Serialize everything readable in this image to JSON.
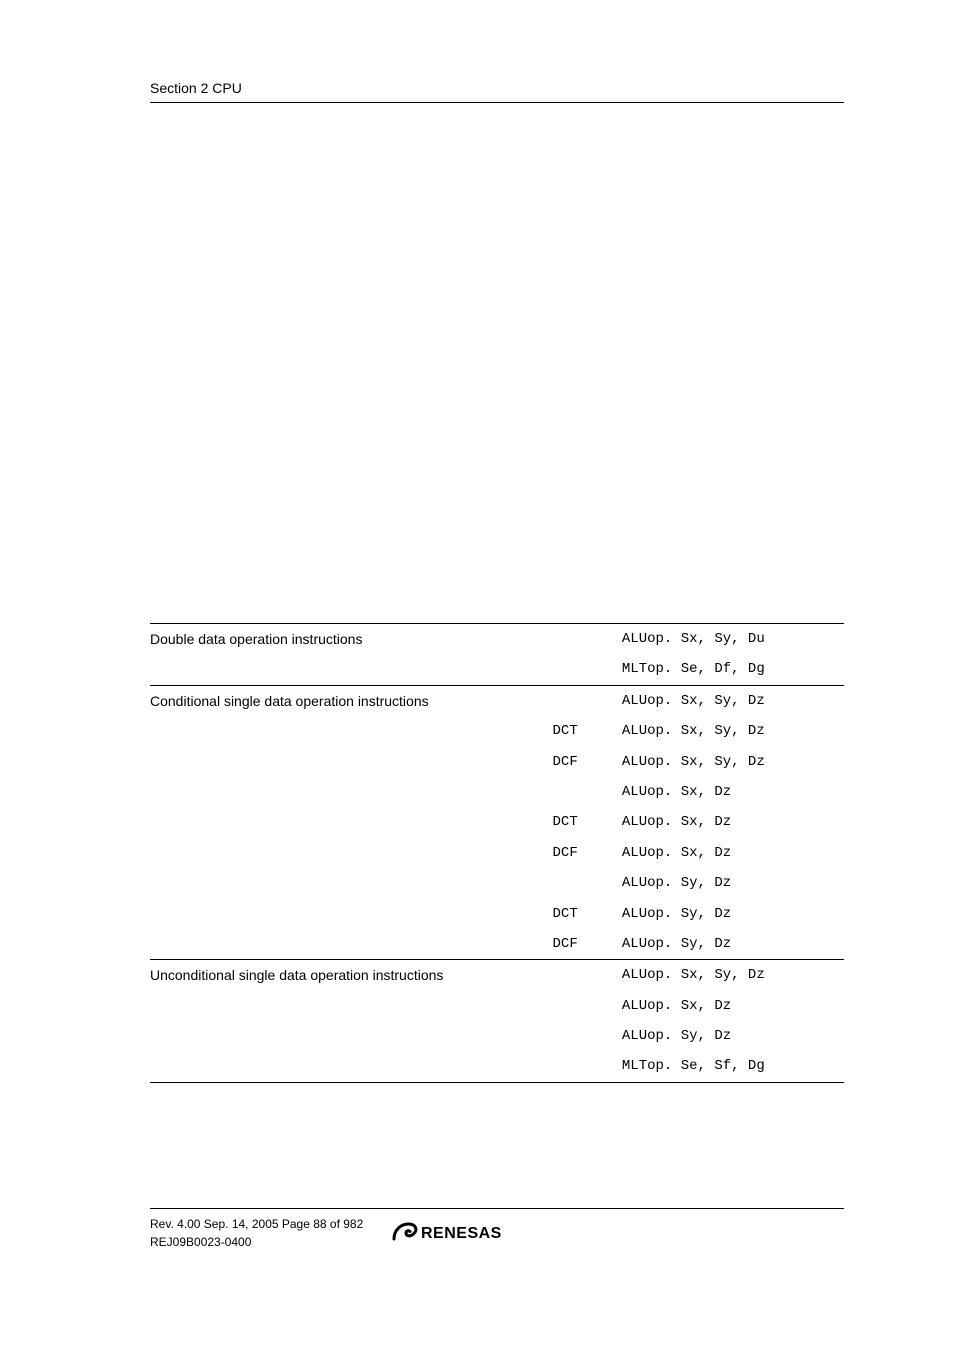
{
  "header": {
    "text": "Section 2   CPU"
  },
  "table": {
    "rows": [
      {
        "desc": "Double data operation instructions",
        "pref": "",
        "code": "ALUop. Sx, Sy, Du",
        "topline": true
      },
      {
        "desc": "",
        "pref": "",
        "code": "MLTop. Se, Df, Dg"
      },
      {
        "desc": "Conditional single data operation instructions",
        "pref": "",
        "code": "ALUop. Sx, Sy, Dz",
        "topline": true
      },
      {
        "desc": "",
        "pref": "DCT",
        "code": "ALUop. Sx, Sy, Dz"
      },
      {
        "desc": "",
        "pref": "DCF",
        "code": "ALUop. Sx, Sy, Dz"
      },
      {
        "desc": "",
        "pref": "",
        "code": "ALUop. Sx, Dz"
      },
      {
        "desc": "",
        "pref": "DCT",
        "code": "ALUop. Sx, Dz"
      },
      {
        "desc": "",
        "pref": "DCF",
        "code": "ALUop. Sx, Dz"
      },
      {
        "desc": "",
        "pref": "",
        "code": "ALUop. Sy, Dz"
      },
      {
        "desc": "",
        "pref": "DCT",
        "code": "ALUop. Sy, Dz"
      },
      {
        "desc": "",
        "pref": "DCF",
        "code": "ALUop. Sy, Dz"
      },
      {
        "desc": "Unconditional single data operation instructions",
        "pref": "",
        "code": "ALUop. Sx, Sy, Dz",
        "topline": true
      },
      {
        "desc": "",
        "pref": "",
        "code": "ALUop. Sx, Dz"
      },
      {
        "desc": "",
        "pref": "",
        "code": "ALUop. Sy, Dz"
      },
      {
        "desc": "",
        "pref": "",
        "code": "MLTop. Se, Sf, Dg",
        "lastline": true
      }
    ]
  },
  "footer": {
    "line1": "Rev. 4.00  Sep. 14, 2005  Page 88 of 982",
    "line2": "REJ09B0023-0400",
    "logo_text": "RENESAS"
  }
}
